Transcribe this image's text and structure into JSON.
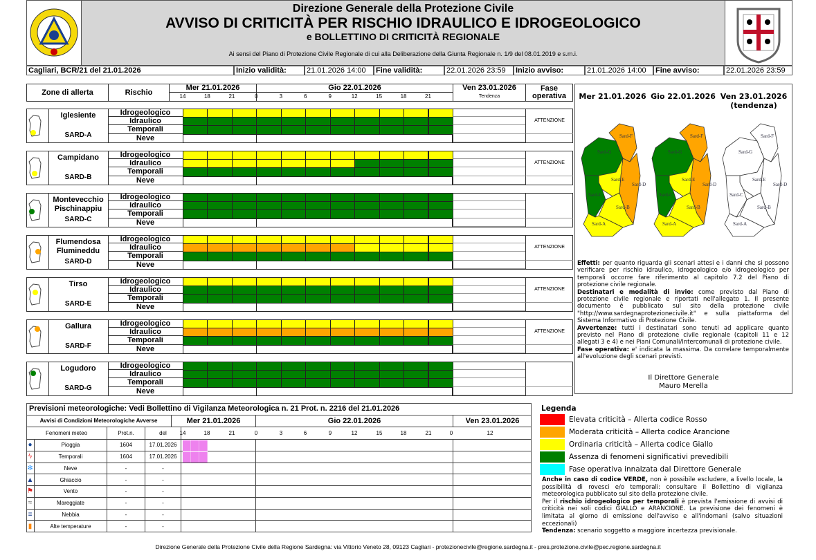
{
  "header": {
    "dept": "Direzione Generale della Protezione Civile",
    "title": "AVVISO DI CRITICITÀ PER RISCHIO IDRAULICO E IDROGEOLOGICO",
    "subtitle": "e BOLLETTINO DI CRITICITÀ REGIONALE",
    "legal": "Ai sensi del Piano di Protezione Civile Regionale di cui alla Deliberazione della Giunta Regionale n. 1/9 del 08.01.2019 e s.m.i.",
    "logo_left": "REGIONE SARDEGNA PROTEZIONE CIVILE",
    "logo_right": "Stemma Regione Sardegna"
  },
  "info": {
    "doc": "Cagliari, BCR/21 del 21.01.2026",
    "inizio_validita_label": "Inizio validità:",
    "inizio_validita": "21.01.2026 14:00",
    "fine_validita_label": "Fine validità:",
    "fine_validita": "22.01.2026 23:59",
    "inizio_avviso_label": "Inizio avviso:",
    "inizio_avviso": "21.01.2026 14:00",
    "fine_avviso_label": "Fine avviso:",
    "fine_avviso": "22.01.2026 23:59"
  },
  "grid": {
    "zone_label": "Zone di allerta",
    "rischio_label": "Rischio",
    "day1": "Mer 21.01.2026",
    "day2": "Gio 22.01.2026",
    "day3": "Ven 23.01.2026",
    "tendenza": "Tendenza",
    "fase_label": "Fase operativa",
    "hours": [
      "14",
      "18",
      "21",
      "0",
      "3",
      "6",
      "9",
      "12",
      "15",
      "18",
      "21"
    ],
    "risks": [
      "Idrogeologico",
      "Idraulico",
      "Temporali",
      "Neve"
    ],
    "colors": {
      "Y": "#ffff00",
      "G": "#008000",
      "O": "#ffa500",
      "R": "#ff0000"
    },
    "zones": [
      {
        "name": "Iglesiente",
        "code": "SARD-A",
        "fase": "ATTENZIONE",
        "icon_color": "#ffff00",
        "rows": [
          "YYYYYYYYYYY",
          "GGGGGGGGGGG",
          "GGGGGGGGGGG"
        ]
      },
      {
        "name": "Campidano",
        "code": "SARD-B",
        "fase": "ATTENZIONE",
        "icon_color": "#ffff00",
        "rows": [
          "YYYYYYYYYYY",
          "YYYYYYYGGGG",
          "GGGGGGGGGGG"
        ]
      },
      {
        "name": "Montevecchio Pischinappiu",
        "code": "SARD-C",
        "fase": "",
        "icon_color": "#008000",
        "rows": [
          "GGGGGGGGGGG",
          "GGGGGGGGGGG",
          "GGGGGGGGGGG"
        ]
      },
      {
        "name": "Flumendosa Flumineddu",
        "code": "SARD-D",
        "fase": "ATTENZIONE",
        "icon_color": "#ffa500",
        "rows": [
          "YYYYYYYYYYY",
          "OOOOOOOYYYY",
          "GGGGGGGGGGG"
        ]
      },
      {
        "name": "Tirso",
        "code": "SARD-E",
        "fase": "ATTENZIONE",
        "icon_color": "#ffff00",
        "rows": [
          "YYYYYYYYYYY",
          "GGGGGGGGGGG",
          "GGGGGGGGGGG"
        ]
      },
      {
        "name": "Gallura",
        "code": "SARD-F",
        "fase": "ATTENZIONE",
        "icon_color": "#ffa500",
        "rows": [
          "YYYYYYYYYYY",
          "OOOOOOOOOOO",
          "GGGGGGGGGGG"
        ]
      },
      {
        "name": "Logudoro",
        "code": "SARD-G",
        "fase": "",
        "icon_color": "#008000",
        "rows": [
          "GGGGGGGGGGG",
          "GGGGGGGGGGG",
          "GGGGGGGGGGG"
        ]
      }
    ]
  },
  "maps": [
    {
      "title": "Mer 21.01.2026",
      "sub": "",
      "zones": {
        "A": "#ffff00",
        "B": "#ffff00",
        "C": "#008000",
        "D": "#ffa500",
        "E": "#ffff00",
        "F": "#ffa500",
        "G": "#008000"
      }
    },
    {
      "title": "Gio 22.01.2026",
      "sub": "",
      "zones": {
        "A": "#ffff00",
        "B": "#ffff00",
        "C": "#008000",
        "D": "#ffa500",
        "E": "#ffff00",
        "F": "#ffa500",
        "G": "#008000"
      }
    },
    {
      "title": "Ven 23.01.2026",
      "sub": "(tendenza)",
      "zones": {
        "A": "#ffffff",
        "B": "#ffffff",
        "C": "#ffffff",
        "D": "#ffffff",
        "E": "#ffffff",
        "F": "#ffffff",
        "G": "#ffffff"
      }
    }
  ],
  "map_labels": {
    "A": "Sard-A",
    "B": "Sard-B",
    "C": "Sard-C",
    "D": "Sard-D",
    "E": "Sard-E",
    "F": "Sard-F",
    "G": "Sard-G"
  },
  "notes": {
    "effetti_label": "Effetti:",
    "effetti": " per quanto riguarda gli scenari attesi e i danni che si possono verificare per rischio idraulico, idrogeologico e/o idrogeologico per temporali occorre fare riferimento al capitolo 7.2 del Piano di protezione civile regionale.",
    "destinatari_label": "Destinatari e modalità di invio:",
    "destinatari": " come previsto dal Piano di protezione civile regionale e riportati nell'allegato 1. Il presente documento è pubblicato sul sito della protezione civile \"http://www.sardegnaprotezionecivile.it\" e sulla piattaforma del Sistema Informativo di Protezione Civile.",
    "avvertenze_label": "Avvertenze:",
    "avvertenze": " tutti i destinatari sono tenuti ad applicare quanto previsto nel Piano di protezione civile regionale (capitoli 11 e 12 allegati 3 e 4) e nei Piani Comunali/Intercomunali di protezione civile.",
    "fase_label": "Fase operativa:",
    "fase": " e' indicata la massima. Da correlare temporalmente all'evoluzione degli scenari previsti.",
    "sign_title": "Il Direttore Generale",
    "sign_name": "Mauro Merella"
  },
  "meteo": {
    "title": "Previsioni meteorologiche: Vedi Bollettino di Vigilanza Meteorologica n. 21 Prot. n. 2216 del 21.01.2026",
    "avvisi_label": "Avvisi di Condizioni Meteorologiche Avverse",
    "day1": "Mer 21.01.2026",
    "day2": "Gio 22.01.2026",
    "day3": "Ven 23.01.2026",
    "col_fen": "Fenomeni meteo",
    "col_prot": "Prot.n.",
    "col_del": "del",
    "hours": [
      "14",
      "18",
      "21",
      "0",
      "3",
      "6",
      "9",
      "12",
      "15",
      "18",
      "21",
      "0",
      "12"
    ],
    "alert_color": "#ee82ee",
    "rows": [
      {
        "name": "Pioggia",
        "prot": "1604",
        "del": "17.01.2026",
        "icon": "raindrop-icon",
        "active": true
      },
      {
        "name": "Temporali",
        "prot": "1604",
        "del": "17.01.2026",
        "icon": "lightning-icon",
        "active": true
      },
      {
        "name": "Neve",
        "prot": "-",
        "del": "-",
        "icon": "snowflake-icon",
        "active": false
      },
      {
        "name": "Ghiaccio",
        "prot": "-",
        "del": "-",
        "icon": "ice-warning-icon",
        "active": false
      },
      {
        "name": "Vento",
        "prot": "-",
        "del": "-",
        "icon": "wind-flag-icon",
        "active": false
      },
      {
        "name": "Mareggiate",
        "prot": "-",
        "del": "-",
        "icon": "waves-icon",
        "active": false
      },
      {
        "name": "Nebbia",
        "prot": "-",
        "del": "-",
        "icon": "fog-icon",
        "active": false
      },
      {
        "name": "Alte temperature",
        "prot": "-",
        "del": "-",
        "icon": "thermometer-icon",
        "active": false
      }
    ]
  },
  "legend": {
    "title": "Legenda",
    "items": [
      {
        "label": "Elevata criticità – Allerta codice Rosso",
        "color": "#ff0000"
      },
      {
        "label": "Moderata criticità – Allerta codice Arancione",
        "color": "#ffa500"
      },
      {
        "label": "Ordinaria criticità – Allerta codice Giallo",
        "color": "#ffff00"
      },
      {
        "label": "Assenza di fenomeni significativi prevedibili",
        "color": "#008000"
      },
      {
        "label": "Fase operativa innalzata dal Direttore Generale",
        "color": "#00ffff"
      }
    ],
    "n1_b": "Anche in caso di codice VERDE,",
    "n1": " non è possibile escludere, a livello locale, la possibilità di rovesci e/o temporali: consultare il Bollettino di vigilanza meteorologica pubblicato sul sito della protezione civile.",
    "n2_a": "Per il ",
    "n2_b": "rischio idrogeologico per temporali",
    "n2": " è prevista l'emissione di avvisi di criticità nei soli codici GIALLO e ARANCIONE. La previsione dei fenomeni è limitata al giorno di emissione dell'avviso e all'indomani (salvo situazioni eccezionali)",
    "n3_b": "Tendenza:",
    "n3": " scenario soggetto a maggiore incertezza previsionale."
  },
  "footer": "Direzione Generale della Protezione Civile della Regione Sardegna: via Vittorio Veneto 28, 09123 Cagliari - protezionecivile@regione.sardegna.it - pres.protezione.civile@pec.regione.sardegna.it"
}
